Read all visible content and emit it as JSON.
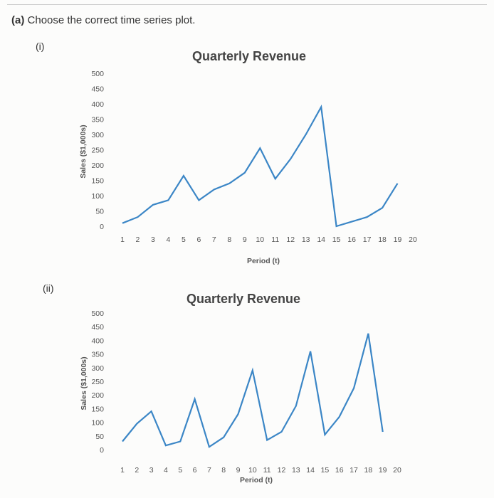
{
  "question": {
    "part": "(a)",
    "text": "Choose the correct time series plot."
  },
  "parts": [
    {
      "label": "(i)"
    },
    {
      "label": "(ii)"
    }
  ],
  "chart_data": [
    {
      "type": "line",
      "title": "Quarterly Revenue",
      "xlabel": "Period (t)",
      "ylabel": "Sales ($1,000s)",
      "ylim": [
        0,
        500
      ],
      "yticks": [
        0,
        50,
        100,
        150,
        200,
        250,
        300,
        350,
        400,
        450,
        500
      ],
      "grid": false,
      "x": [
        1,
        2,
        3,
        4,
        5,
        6,
        7,
        8,
        9,
        10,
        11,
        12,
        13,
        14,
        15,
        16,
        17,
        18,
        19,
        20
      ],
      "series": [
        {
          "color": "#3b86c6",
          "values": [
            10,
            30,
            70,
            85,
            165,
            85,
            120,
            140,
            175,
            255,
            155,
            220,
            300,
            390,
            0,
            15,
            30,
            60,
            140,
            null
          ]
        }
      ]
    },
    {
      "type": "line",
      "title": "Quarterly Revenue",
      "xlabel": "Period (t)",
      "ylabel": "Sales ($1,000s)",
      "ylim": [
        0,
        500
      ],
      "yticks": [
        0,
        50,
        100,
        150,
        200,
        250,
        300,
        350,
        400,
        450,
        500
      ],
      "grid": false,
      "x": [
        1,
        2,
        3,
        4,
        5,
        6,
        7,
        8,
        9,
        10,
        11,
        12,
        13,
        14,
        15,
        16,
        17,
        18,
        19,
        20
      ],
      "series": [
        {
          "color": "#3b86c6",
          "values": [
            30,
            95,
            140,
            15,
            30,
            185,
            10,
            45,
            130,
            290,
            35,
            65,
            160,
            360,
            55,
            120,
            225,
            425,
            65,
            null
          ]
        }
      ]
    }
  ]
}
